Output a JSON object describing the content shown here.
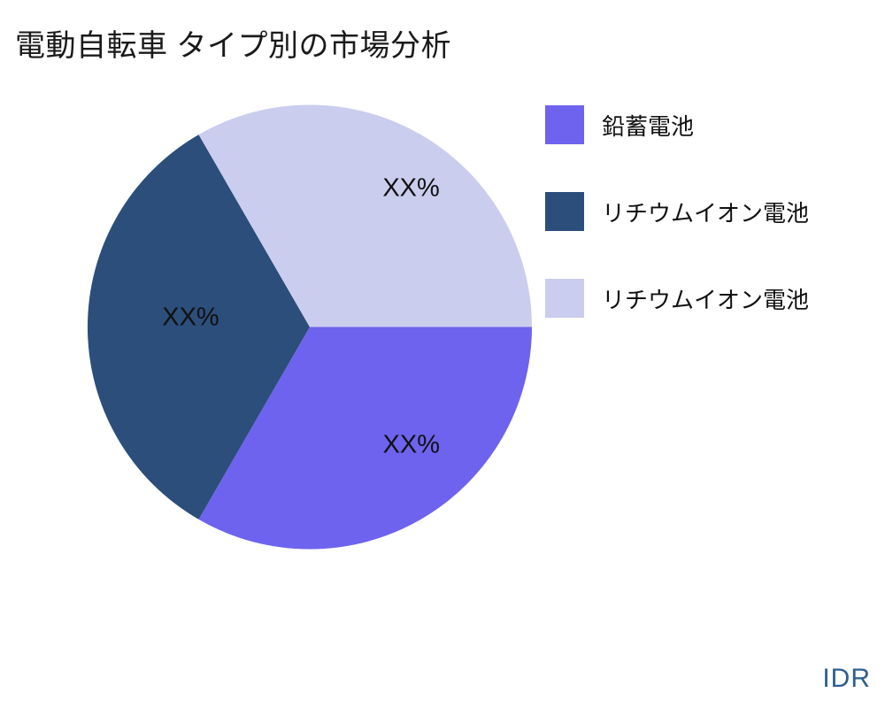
{
  "page": {
    "title": "電動自転車 タイプ別の市場分析",
    "watermark": "IDR",
    "watermark_color": "#2d5f8e",
    "background_color": "#ffffff"
  },
  "chart_data": {
    "type": "pie",
    "title": "電動自転車 タイプ別の市場分析",
    "legend_position": "right",
    "labels_shown_as": "placeholder percentages",
    "slices": [
      {
        "label": "鉛蓄電池",
        "value": 33.33,
        "value_label": "XX%",
        "color": "#6e63ee"
      },
      {
        "label": "リチウムイオン電池",
        "value": 33.34,
        "value_label": "XX%",
        "color": "#2b4e7b"
      },
      {
        "label": "リチウムイオン電池",
        "value": 33.33,
        "value_label": "XX%",
        "color": "#cbcdef"
      }
    ]
  }
}
